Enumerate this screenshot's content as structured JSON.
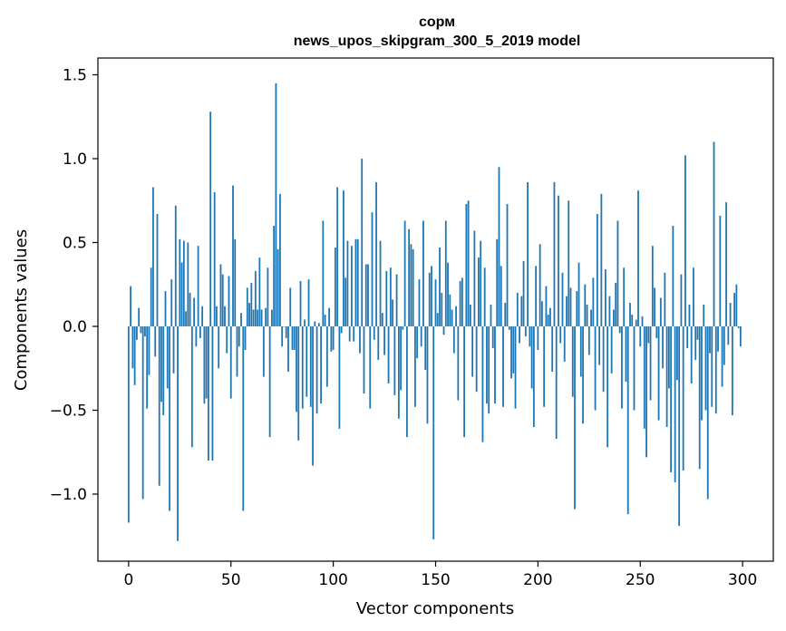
{
  "chart_data": {
    "type": "bar",
    "title": "сорм",
    "subtitle": "news_upos_skipgram_300_5_2019 model",
    "xlabel": "Vector components",
    "ylabel": "Components values",
    "xlim": [
      -15,
      315
    ],
    "ylim": [
      -1.4,
      1.6
    ],
    "x_ticks": [
      0,
      50,
      100,
      150,
      200,
      250,
      300
    ],
    "y_ticks": [
      -1.0,
      -0.5,
      0.0,
      0.5,
      1.0,
      1.5
    ],
    "x_tick_labels": [
      "0",
      "50",
      "100",
      "150",
      "200",
      "250",
      "300"
    ],
    "y_tick_labels": [
      "−1.0",
      "−0.5",
      "0.0",
      "0.5",
      "1.0",
      "1.5"
    ],
    "grid": false,
    "bar_color": "#1f77b4",
    "values": [
      -1.17,
      0.24,
      -0.25,
      -0.35,
      -0.08,
      0.11,
      -0.04,
      -1.03,
      -0.06,
      -0.49,
      -0.29,
      0.35,
      0.83,
      -0.18,
      0.67,
      -0.95,
      -0.45,
      -0.53,
      0.21,
      -0.37,
      -1.1,
      0.28,
      -0.28,
      0.72,
      -1.28,
      0.52,
      0.38,
      0.51,
      0.09,
      0.5,
      0.2,
      -0.72,
      0.17,
      -0.12,
      0.48,
      -0.07,
      0.12,
      -0.46,
      -0.43,
      -0.8,
      1.28,
      -0.8,
      0.8,
      0.12,
      -0.25,
      0.37,
      0.31,
      0.12,
      -0.16,
      0.3,
      -0.43,
      0.84,
      0.52,
      -0.3,
      -0.12,
      0.08,
      -1.1,
      -0.14,
      0.23,
      0.14,
      0.26,
      0.1,
      0.33,
      0.1,
      0.41,
      0.1,
      -0.3,
      0.11,
      0.35,
      -0.66,
      0.1,
      0.6,
      1.45,
      0.46,
      0.79,
      -0.12,
      0.0,
      -0.07,
      -0.27,
      0.23,
      -0.14,
      -0.14,
      -0.51,
      -0.68,
      0.27,
      -0.49,
      0.04,
      -0.42,
      0.28,
      -0.48,
      -0.83,
      0.03,
      -0.52,
      0.02,
      -0.46,
      0.63,
      0.07,
      -0.36,
      0.11,
      -0.15,
      -0.14,
      0.47,
      0.83,
      -0.61,
      -0.04,
      0.81,
      0.29,
      0.51,
      -0.09,
      0.48,
      -0.09,
      0.52,
      0.52,
      -0.16,
      1.0,
      -0.4,
      0.37,
      0.37,
      -0.49,
      0.68,
      -0.08,
      0.86,
      -0.2,
      0.51,
      0.08,
      -0.17,
      0.33,
      -0.34,
      0.35,
      0.16,
      -0.41,
      0.31,
      -0.55,
      -0.38,
      -0.02,
      0.63,
      -0.66,
      0.58,
      0.49,
      0.46,
      -0.48,
      -0.19,
      0.28,
      -0.12,
      0.63,
      -0.26,
      -0.58,
      0.32,
      0.36,
      -1.27,
      0.28,
      0.08,
      0.47,
      0.2,
      -0.05,
      0.63,
      0.38,
      0.19,
      0.1,
      -0.16,
      0.12,
      -0.44,
      0.27,
      0.29,
      -0.66,
      0.73,
      0.75,
      0.13,
      -0.3,
      0.57,
      -0.39,
      0.41,
      0.51,
      -0.69,
      0.35,
      -0.46,
      -0.52,
      0.13,
      -0.13,
      -0.46,
      0.52,
      0.95,
      0.36,
      -0.48,
      0.14,
      0.73,
      -0.02,
      -0.31,
      -0.28,
      -0.49,
      0.2,
      -0.1,
      0.18,
      0.39,
      -0.06,
      0.86,
      -0.12,
      -0.37,
      -0.6,
      0.36,
      -0.14,
      0.49,
      0.15,
      -0.48,
      0.24,
      0.07,
      0.11,
      -0.27,
      0.86,
      -0.67,
      0.78,
      -0.1,
      0.32,
      -0.21,
      0.18,
      0.75,
      0.23,
      -0.42,
      -1.09,
      0.21,
      0.38,
      -0.3,
      -0.58,
      0.25,
      0.13,
      -0.17,
      0.1,
      0.29,
      -0.5,
      0.67,
      -0.23,
      0.79,
      -0.39,
      0.34,
      -0.72,
      0.18,
      -0.28,
      0.1,
      0.26,
      0.63,
      -0.04,
      -0.49,
      0.35,
      -0.33,
      -1.12,
      0.14,
      0.07,
      -0.5,
      0.04,
      0.81,
      -0.12,
      0.06,
      -0.61,
      -0.78,
      -0.1,
      -0.44,
      0.48,
      0.23,
      -0.07,
      -0.56,
      0.17,
      -0.25,
      0.32,
      -0.6,
      -0.37,
      -0.87,
      0.6,
      -0.93,
      -0.32,
      -1.19,
      0.31,
      -0.86,
      1.02,
      -0.13,
      0.13,
      -0.34,
      0.35,
      -0.2,
      -0.08,
      -0.85,
      -0.56,
      0.13,
      -0.5,
      -1.03,
      -0.16,
      -0.48,
      1.1,
      -0.52,
      -0.15,
      0.66,
      -0.36,
      -0.23,
      0.74,
      -0.11,
      0.14,
      -0.53,
      0.2,
      0.25,
      -0.01,
      -0.12
    ]
  }
}
